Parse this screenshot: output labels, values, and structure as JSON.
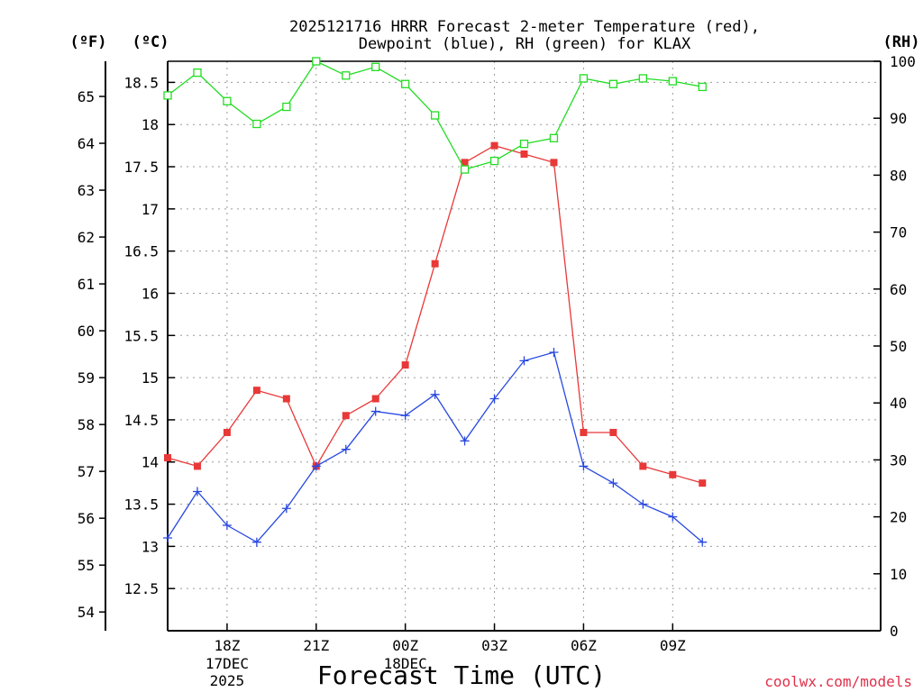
{
  "chart_data": {
    "type": "line",
    "title_line1": "2025121716 HRRR Forecast 2-meter Temperature (red),",
    "title_line2": "Dewpoint (blue), RH (green) for KLAX",
    "xlabel": "Forecast Time (UTC)",
    "credit": "coolwx.com/models",
    "left_unit_f": "(ºF)",
    "left_unit_c": "(ºC)",
    "right_unit": "(RH)",
    "x_hours_range": [
      16,
      40
    ],
    "x_ticks": [
      {
        "hour": 18,
        "label": "18Z",
        "sub1": "17DEC",
        "sub2": "2025"
      },
      {
        "hour": 21,
        "label": "21Z",
        "sub1": "",
        "sub2": ""
      },
      {
        "hour": 24,
        "label": "00Z",
        "sub1": "18DEC",
        "sub2": ""
      },
      {
        "hour": 27,
        "label": "03Z",
        "sub1": "",
        "sub2": ""
      },
      {
        "hour": 30,
        "label": "06Z",
        "sub1": "",
        "sub2": ""
      },
      {
        "hour": 33,
        "label": "09Z",
        "sub1": "",
        "sub2": ""
      }
    ],
    "celsius_ticks": [
      "12.5",
      "13",
      "13.5",
      "14",
      "14.5",
      "15",
      "15.5",
      "16",
      "16.5",
      "17",
      "17.5",
      "18",
      "18.5"
    ],
    "fahrenheit_ticks": [
      "54",
      "55",
      "56",
      "57",
      "58",
      "59",
      "60",
      "61",
      "62",
      "63",
      "64",
      "65"
    ],
    "rh_ticks": [
      "0",
      "10",
      "20",
      "30",
      "40",
      "50",
      "60",
      "70",
      "80",
      "90",
      "100"
    ],
    "celsius_range": [
      12.0,
      18.75
    ],
    "rh_range": [
      0,
      100
    ],
    "hours": [
      16,
      17,
      18,
      19,
      20,
      21,
      22,
      23,
      24,
      25,
      26,
      27,
      28,
      29,
      30,
      31,
      32,
      33,
      34
    ],
    "series": [
      {
        "name": "Temperature",
        "color": "#e83838",
        "marker": "filled-square",
        "axis": "celsius",
        "values": [
          14.05,
          13.95,
          14.35,
          14.85,
          14.75,
          13.95,
          14.55,
          14.75,
          15.15,
          16.35,
          17.55,
          17.75,
          17.65,
          17.55,
          14.35,
          14.35,
          13.95,
          13.85,
          13.75
        ]
      },
      {
        "name": "Dewpoint",
        "color": "#2848e0",
        "marker": "plus",
        "axis": "celsius",
        "values": [
          13.1,
          13.65,
          13.25,
          13.05,
          13.45,
          13.95,
          14.15,
          14.6,
          14.55,
          14.8,
          14.25,
          14.75,
          15.2,
          15.3,
          13.95,
          13.75,
          13.5,
          13.35,
          13.05
        ]
      },
      {
        "name": "RH",
        "color": "#22dd22",
        "marker": "open-square",
        "axis": "rh",
        "values": [
          94,
          98,
          93,
          89,
          92,
          100,
          97.5,
          99,
          96,
          90.5,
          81,
          82.5,
          85.5,
          86.5,
          97,
          96,
          97,
          96.5,
          95.5
        ]
      }
    ]
  }
}
